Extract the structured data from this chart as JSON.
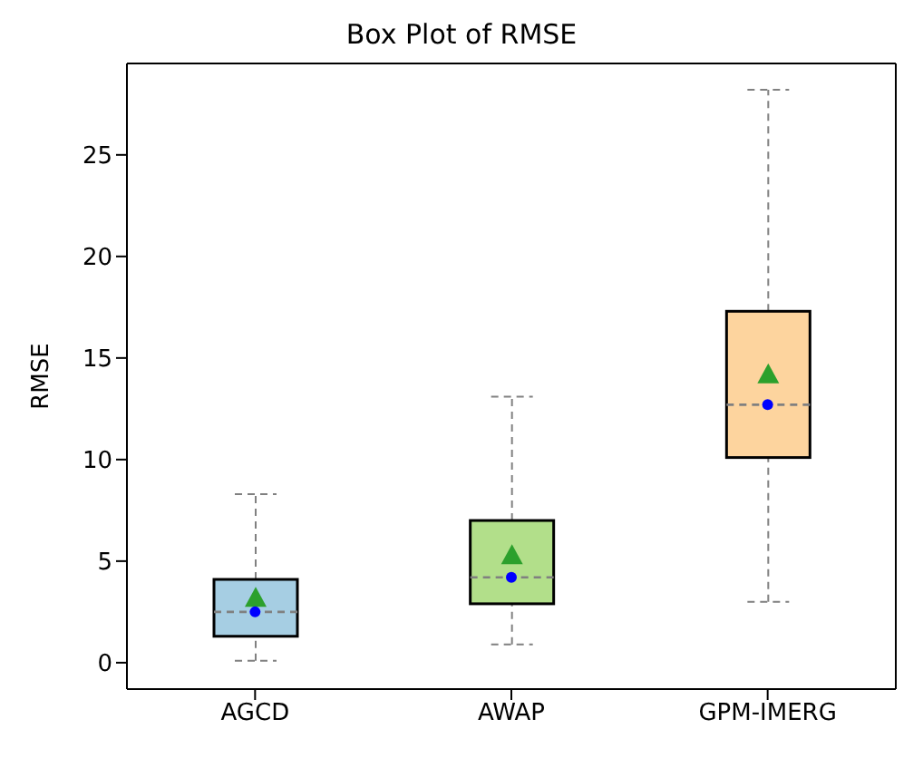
{
  "chart_data": {
    "type": "box",
    "title": "Box Plot of RMSE",
    "ylabel": "RMSE",
    "categories": [
      "AGCD",
      "AWAP",
      "GPM-IMERG"
    ],
    "colors": [
      "#a6cee3",
      "#b2df8a",
      "#fdd49e"
    ],
    "boxes": [
      {
        "low": 0.1,
        "q1": 1.3,
        "median": 2.5,
        "q3": 4.1,
        "high": 8.3,
        "mean": 3.2
      },
      {
        "low": 0.9,
        "q1": 2.9,
        "median": 4.2,
        "q3": 7.0,
        "high": 13.1,
        "mean": 5.3
      },
      {
        "low": 3.0,
        "q1": 10.1,
        "median": 12.7,
        "q3": 17.3,
        "high": 28.2,
        "mean": 14.2
      }
    ],
    "series": [
      {
        "type": "scatter",
        "x": [
          "AGCD",
          "AWAP",
          "GPM-IMERG"
        ],
        "values": [
          2.5,
          4.2,
          12.7
        ],
        "color": "#0000ff"
      }
    ],
    "ylim": [
      -1.3,
      29.5
    ],
    "yticks": [
      0,
      5,
      10,
      15,
      20,
      25
    ],
    "grid": false,
    "legend": false
  }
}
